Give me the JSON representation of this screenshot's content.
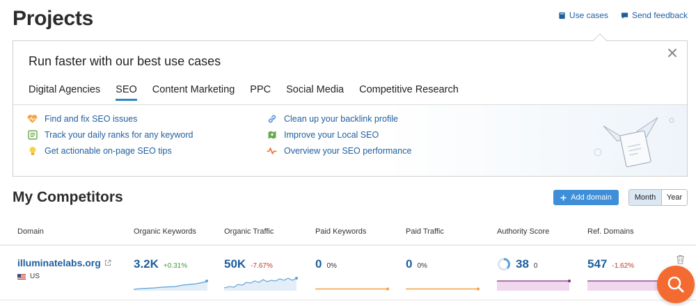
{
  "page": {
    "title": "Projects"
  },
  "top_links": {
    "use_cases": "Use cases",
    "send_feedback": "Send feedback"
  },
  "usecase_panel": {
    "heading": "Run faster with our best use cases",
    "tabs": [
      {
        "label": "Digital Agencies",
        "active": false
      },
      {
        "label": "SEO",
        "active": true
      },
      {
        "label": "Content Marketing",
        "active": false
      },
      {
        "label": "PPC",
        "active": false
      },
      {
        "label": "Social Media",
        "active": false
      },
      {
        "label": "Competitive Research",
        "active": false
      }
    ],
    "left_items": [
      {
        "label": "Find and fix SEO issues",
        "icon": "heart-pulse-icon"
      },
      {
        "label": "Track your daily ranks for any keyword",
        "icon": "list-check-icon"
      },
      {
        "label": "Get actionable on-page SEO tips",
        "icon": "lightbulb-icon"
      }
    ],
    "right_items": [
      {
        "label": "Clean up your backlink profile",
        "icon": "link-icon"
      },
      {
        "label": "Improve your Local SEO",
        "icon": "map-pin-icon"
      },
      {
        "label": "Overview your SEO performance",
        "icon": "pulse-icon"
      }
    ]
  },
  "competitors": {
    "title": "My Competitors",
    "add_domain": "Add domain",
    "period": {
      "month": "Month",
      "year": "Year",
      "selected": "Month"
    },
    "columns": [
      "Domain",
      "Organic Keywords",
      "Organic Traffic",
      "Paid Keywords",
      "Paid Traffic",
      "Authority Score",
      "Ref. Domains"
    ],
    "rows": [
      {
        "domain": "illuminatelabs.org",
        "country": "US",
        "organic_keywords": {
          "value": "3.2K",
          "change": "+0.31%"
        },
        "organic_traffic": {
          "value": "50K",
          "change": "-7.67%"
        },
        "paid_keywords": {
          "value": "0",
          "change": "0%"
        },
        "paid_traffic": {
          "value": "0",
          "change": "0%"
        },
        "authority_score": {
          "value": "38",
          "change": "0"
        },
        "ref_domains": {
          "value": "547",
          "change": "-1.62%"
        }
      }
    ]
  },
  "colors": {
    "accent_blue": "#1f5e9e",
    "button_blue": "#3e8fd8",
    "positive": "#3b9b3b",
    "negative": "#c0392b",
    "fab_orange": "#f46b31",
    "paid_line": "#f0a040",
    "authority_fill": "#e8c8e8"
  }
}
